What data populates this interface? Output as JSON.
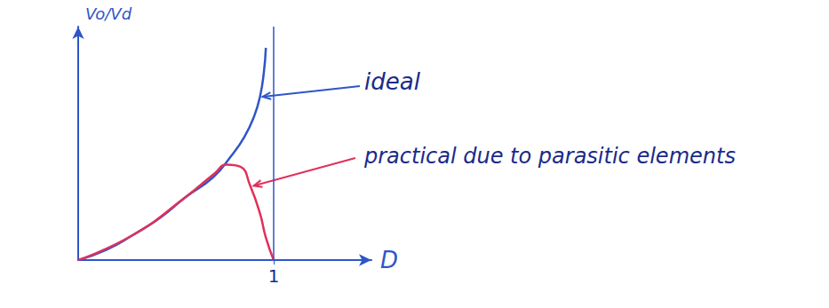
{
  "chart_data": {
    "type": "line",
    "x_label": "D",
    "y_label": "Vo/Vd",
    "xlim": [
      0,
      1.5
    ],
    "xticks": [
      1
    ],
    "ylim": [
      0,
      11
    ],
    "tick_labels": "x",
    "grid": false,
    "series": [
      {
        "name": "ideal",
        "color": "#2f55c8",
        "line_style": "solid",
        "x": [
          0,
          0.145,
          0.28,
          0.42,
          0.55,
          0.69,
          0.78,
          0.85,
          0.9,
          0.93,
          0.95,
          0.96
        ],
        "values": [
          0,
          0.49,
          1.18,
          2.0,
          2.97,
          3.9,
          4.87,
          5.8,
          6.77,
          7.7,
          8.86,
          10.0
        ]
      },
      {
        "name": "practical due to parasitic elements",
        "color": "#e0305a",
        "line_style": "solid",
        "x": [
          0,
          0.28,
          0.55,
          0.7,
          0.76,
          0.83,
          0.88,
          0.93,
          0.96,
          1.0
        ],
        "values": [
          0,
          1.18,
          2.97,
          4.1,
          4.5,
          4.4,
          3.5,
          2.2,
          1.06,
          0
        ]
      }
    ]
  }
}
